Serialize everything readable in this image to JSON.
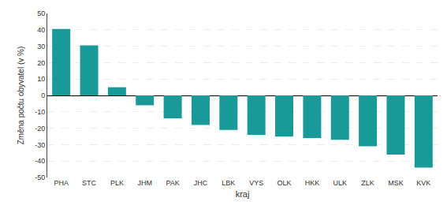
{
  "chart_data": {
    "type": "bar",
    "categories": [
      "PHA",
      "STC",
      "PLK",
      "JHM",
      "PAK",
      "JHC",
      "LBK",
      "VYS",
      "OLK",
      "HKK",
      "ULK",
      "ZLK",
      "MSK",
      "KVK"
    ],
    "values": [
      40.5,
      30.5,
      5.0,
      -6.0,
      -14.0,
      -18.0,
      -21.0,
      -24.0,
      -25.0,
      -26.0,
      -27.0,
      -31.0,
      -36.0,
      -44.0
    ],
    "color": "#1a9999",
    "xlabel": "kraj",
    "ylabel": "Změna počtu obyvatel (v %)",
    "ylim": [
      -50,
      50
    ],
    "yticks": [
      -50,
      -40,
      -30,
      -20,
      -10,
      0,
      10,
      20,
      30,
      40,
      50
    ],
    "grid": true
  }
}
